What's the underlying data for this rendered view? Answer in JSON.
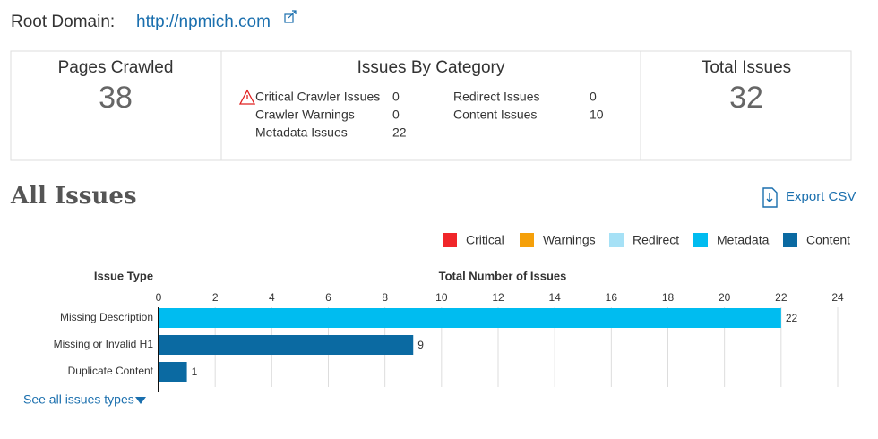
{
  "header": {
    "label": "Root Domain:",
    "link": "http://npmich.com"
  },
  "summary": {
    "pages_crawled": {
      "title": "Pages Crawled",
      "value": 38
    },
    "issues_by_category": {
      "title": "Issues By Category",
      "items": [
        {
          "label": "Critical Crawler Issues",
          "value": 0
        },
        {
          "label": "Crawler Warnings",
          "value": 0
        },
        {
          "label": "Metadata Issues",
          "value": 22
        },
        {
          "label": "Redirect Issues",
          "value": 0
        },
        {
          "label": "Content Issues",
          "value": 10
        }
      ]
    },
    "total_issues": {
      "title": "Total Issues",
      "value": 32
    }
  },
  "section_title": "All Issues",
  "export_label": "Export CSV",
  "chart_data": {
    "type": "bar",
    "orientation": "horizontal",
    "stacked": true,
    "category_header": "Issue Type",
    "x_label": "Total Number of Issues",
    "categories": [
      "Missing Description",
      "Missing or Invalid H1",
      "Duplicate Content"
    ],
    "series": [
      {
        "name": "Critical",
        "color": "#f0262a",
        "values": [
          null,
          null,
          null
        ]
      },
      {
        "name": "Warnings",
        "color": "#f5a00a",
        "values": [
          null,
          null,
          null
        ]
      },
      {
        "name": "Redirect",
        "color": "#a6e1f6",
        "values": [
          null,
          null,
          null
        ]
      },
      {
        "name": "Metadata",
        "color": "#00bcf0",
        "values": [
          22,
          null,
          null
        ]
      },
      {
        "name": "Content",
        "color": "#0b6aa2",
        "values": [
          null,
          9,
          1
        ]
      }
    ],
    "xlim": [
      0,
      24
    ],
    "xticks": [
      0,
      2,
      4,
      6,
      8,
      10,
      12,
      14,
      16,
      18,
      20,
      22,
      24
    ],
    "grid": true
  },
  "footer_link": "See all issues types"
}
